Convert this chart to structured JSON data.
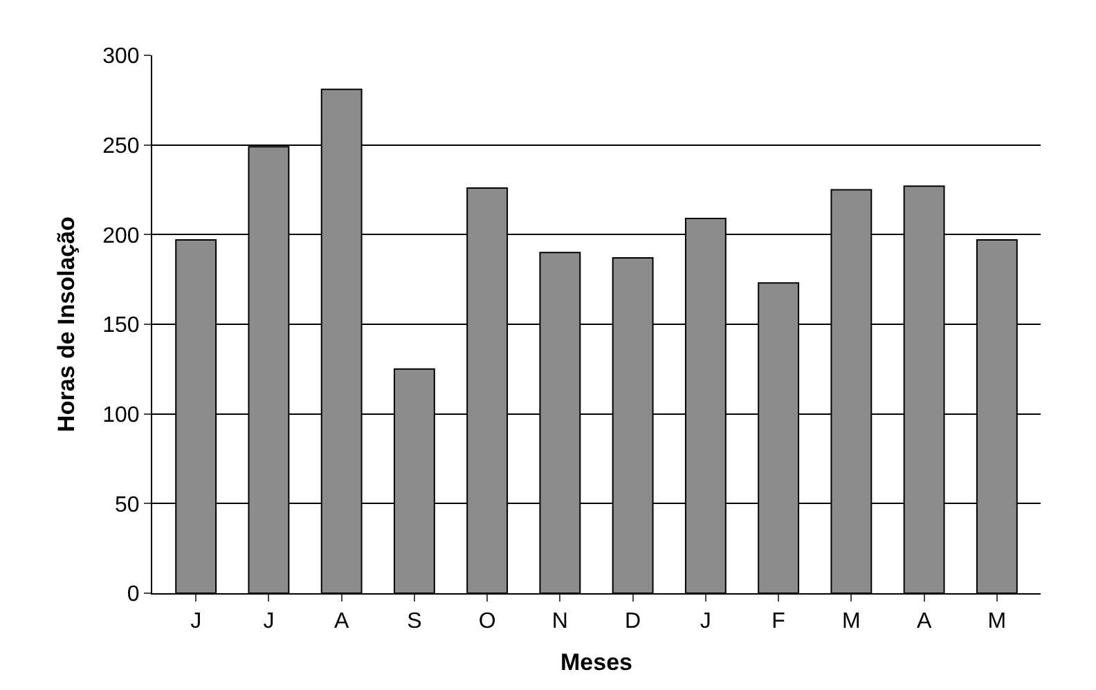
{
  "chart_data": {
    "type": "bar",
    "xlabel": "Meses",
    "ylabel": "Horas de Insolação",
    "categories": [
      "J",
      "J",
      "A",
      "S",
      "O",
      "N",
      "D",
      "J",
      "F",
      "M",
      "A",
      "M"
    ],
    "values": [
      197,
      249,
      281,
      125,
      226,
      190,
      187,
      209,
      173,
      225,
      227,
      197
    ],
    "color": "#8c8c8c",
    "ylim": [
      0,
      300
    ],
    "yticks": [
      0,
      50,
      100,
      150,
      200,
      250,
      300
    ],
    "grid": "y",
    "legend": false
  }
}
